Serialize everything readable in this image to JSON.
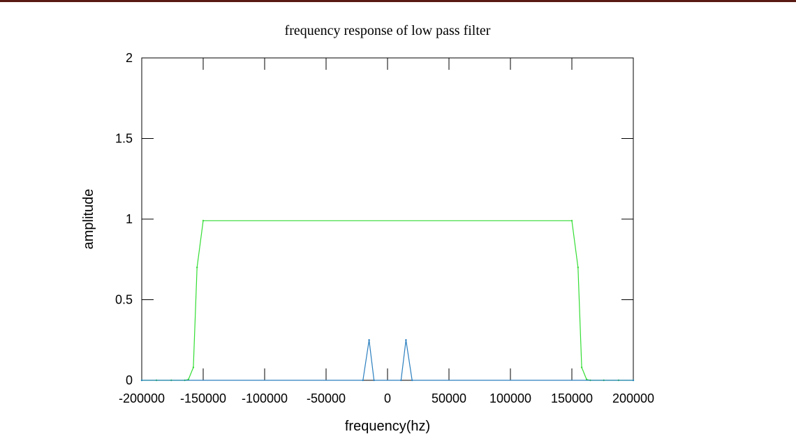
{
  "chart_data": {
    "type": "line",
    "title": "frequency response of low pass filter",
    "xlabel": "frequency(hz)",
    "ylabel": "amplitude",
    "xlim": [
      -200000,
      200000
    ],
    "ylim": [
      0,
      2
    ],
    "xticks": [
      -200000,
      -150000,
      -100000,
      -50000,
      0,
      50000,
      100000,
      150000,
      200000
    ],
    "xtick_labels": [
      "-200000",
      "-150000",
      "-100000",
      "-50000",
      "0",
      "50000",
      "100000",
      "150000",
      "200000"
    ],
    "yticks": [
      0,
      0.5,
      1,
      1.5,
      2
    ],
    "ytick_labels": [
      "0",
      "0.5",
      "1",
      "1.5",
      "2"
    ],
    "grid": false,
    "series": [
      {
        "color": "#33dd33",
        "x": [
          -200000,
          -188000,
          -176000,
          -165000,
          -162000,
          -158000,
          -155000,
          -150000,
          150000,
          155000,
          158000,
          162000,
          165000,
          176000,
          188000,
          200000
        ],
        "y": [
          0,
          0,
          0,
          0,
          0.005,
          0.08,
          0.7,
          0.99,
          0.99,
          0.7,
          0.08,
          0.005,
          0,
          0,
          0,
          0
        ]
      },
      {
        "color": "#2b7fbf",
        "x": [
          -200000,
          -20000,
          -15000,
          -11000,
          11000,
          15000,
          20000,
          200000
        ],
        "y": [
          0,
          0,
          0.25,
          0,
          0,
          0.25,
          0,
          0
        ]
      }
    ]
  }
}
